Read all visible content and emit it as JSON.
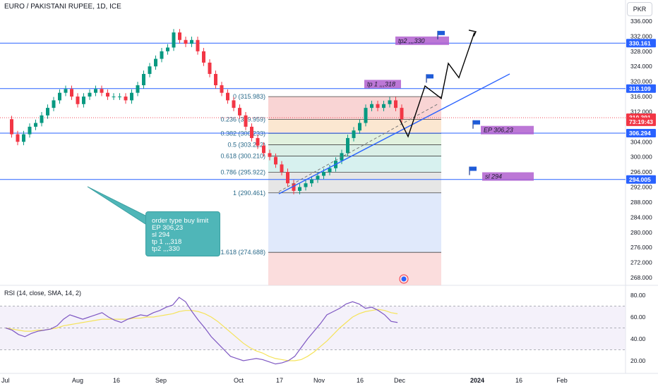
{
  "header": {
    "title": "EURO / PAKISTANI RUPEE, 1D, ICE",
    "currency": "PKR"
  },
  "price_axis": {
    "ticks": [
      "336.000",
      "332.000",
      "328.000",
      "324.000",
      "320.000",
      "316.000",
      "312.000",
      "304.000",
      "300.000",
      "296.000",
      "292.000",
      "288.000",
      "284.000",
      "280.000",
      "276.000",
      "272.000",
      "268.000"
    ],
    "tick_values": [
      336,
      332,
      328,
      324,
      320,
      316,
      312,
      304,
      300,
      296,
      292,
      288,
      284,
      280,
      276,
      272,
      268
    ]
  },
  "price_labels": [
    {
      "text": "330.161",
      "value": 330.161,
      "color": "#2962ff"
    },
    {
      "text": "318.109",
      "value": 318.109,
      "color": "#2962ff"
    },
    {
      "text": "310.391",
      "value": 310.391,
      "color": "#f23645"
    },
    {
      "text": "73:19:43",
      "value": 309.3,
      "color": "#f23645"
    },
    {
      "text": "306.294",
      "value": 306.294,
      "color": "#2962ff"
    },
    {
      "text": "294.005",
      "value": 294.005,
      "color": "#2962ff"
    }
  ],
  "time_axis": {
    "labels": [
      "Jul",
      "Aug",
      "16",
      "Sep",
      "Oct",
      "17",
      "Nov",
      "16",
      "Dec",
      "2024",
      "16",
      "Feb"
    ]
  },
  "fib_levels": [
    {
      "text": "0 (315.983)",
      "value": 315.983,
      "fill": "#f7c6c6"
    },
    {
      "text": "0.236 (309.959)",
      "value": 309.959,
      "fill": "#f9dfc1"
    },
    {
      "text": "0.382 (306.233)",
      "value": 306.233,
      "fill": "#d7ecd3"
    },
    {
      "text": "0.5 (303.222)",
      "value": 303.222,
      "fill": "#cde9df"
    },
    {
      "text": "0.618 (300.210)",
      "value": 300.21,
      "fill": "#c9ecea"
    },
    {
      "text": "0.786 (295.922)",
      "value": 295.922,
      "fill": "#dedede"
    },
    {
      "text": "1 (290.461)",
      "value": 290.461,
      "fill": "#d6e2fa"
    },
    {
      "text": "1.618 (274.688)",
      "value": 274.688,
      "fill": "#f9d1d1"
    }
  ],
  "annotations": [
    {
      "text": "tp2 ,,,330",
      "value": 330.8
    },
    {
      "text": "tp 1 ,,,318",
      "value": 319.3
    },
    {
      "text": "EP 306,23",
      "value": 307.1
    },
    {
      "text": "sl 294",
      "value": 294.8
    }
  ],
  "note": {
    "lines": [
      "order type buy limit",
      "EP 306,23",
      "sl 294",
      "tp 1 ,,,318",
      "tp2 ,,,330"
    ]
  },
  "rsi": {
    "label": "RSI (14, close, SMA, 14, 2)",
    "ticks": [
      "80.00",
      "60.00",
      "40.00",
      "20.00"
    ],
    "tick_values": [
      80,
      60,
      40,
      20
    ],
    "upper_band": 70,
    "mid_band": 50,
    "lower_band": 30,
    "values": [
      50,
      48,
      44,
      42,
      45,
      47,
      48,
      49,
      52,
      58,
      62,
      60,
      58,
      60,
      62,
      64,
      60,
      57,
      55,
      58,
      60,
      62,
      61,
      64,
      66,
      69,
      71,
      78,
      74,
      65,
      57,
      50,
      42,
      36,
      30,
      24,
      22,
      20,
      21,
      22,
      21,
      19,
      17,
      18,
      20,
      24,
      32,
      40,
      47,
      54,
      62,
      65,
      68,
      72,
      74,
      72,
      68,
      69,
      66,
      62,
      56,
      55
    ],
    "signal": [
      50,
      49,
      48,
      47,
      47,
      48,
      48,
      49,
      50,
      52,
      53,
      54,
      55,
      56,
      57,
      58,
      58,
      58,
      58,
      58,
      59,
      59,
      60,
      60,
      61,
      62,
      63,
      65,
      66,
      66,
      65,
      63,
      60,
      56,
      51,
      46,
      41,
      36,
      32,
      29,
      27,
      24,
      22,
      21,
      20,
      20,
      21,
      24,
      28,
      33,
      38,
      44,
      50,
      55,
      60,
      63,
      65,
      66,
      67,
      66,
      64,
      63
    ]
  },
  "chart_data": {
    "type": "candlestick",
    "title": "EURO / PAKISTANI RUPEE, 1D, ICE",
    "ylim": [
      266,
      338
    ],
    "price": {
      "comment_free_series": "close",
      "close": [
        310,
        306,
        304,
        306,
        308,
        309,
        311,
        313,
        315,
        317,
        318,
        316,
        314,
        316,
        317,
        318,
        317,
        316,
        316,
        316,
        315,
        317,
        319,
        322,
        324,
        326,
        328,
        329,
        333,
        331,
        330,
        331,
        328,
        325,
        322,
        319,
        317,
        315,
        313,
        311,
        308,
        305,
        303,
        301,
        300,
        298,
        296,
        293,
        291,
        292,
        293,
        294,
        295,
        296,
        297,
        299,
        301,
        305,
        307,
        309,
        313,
        314,
        313,
        314,
        315,
        313,
        310
      ]
    },
    "horizontal_levels": [
      330.161,
      318.109,
      306.294,
      294.005
    ],
    "current_price": 310.391
  },
  "colors": {
    "up": "#089981",
    "down": "#f23645",
    "level_line": "#2962ff",
    "rsi_line": "#7e57c2",
    "rsi_signal": "#f5e35a",
    "annotation_bg": "#b05fcf"
  }
}
